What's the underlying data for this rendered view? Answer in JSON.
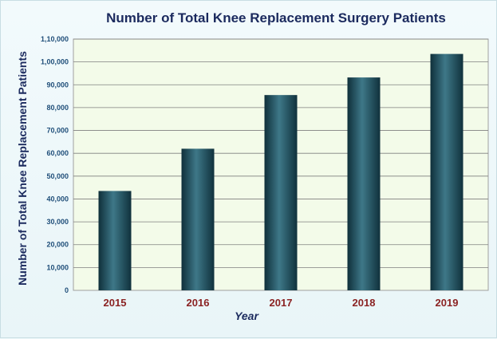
{
  "chart_data": {
    "type": "bar",
    "title": "Number of Total Knee Replacement Surgery Patients",
    "xlabel": "Year",
    "ylabel": "Number of Total Knee Replacement Patients",
    "categories": [
      "2015",
      "2016",
      "2017",
      "2018",
      "2019"
    ],
    "values": [
      43500,
      62000,
      85500,
      93200,
      103500
    ],
    "ylim": [
      0,
      110000
    ],
    "yticks": [
      0,
      10000,
      20000,
      30000,
      40000,
      50000,
      60000,
      70000,
      80000,
      90000,
      100000,
      110000
    ],
    "ytick_labels": [
      "0",
      "10,000",
      "20,000",
      "30,000",
      "40,000",
      "50,000",
      "60,000",
      "70,000",
      "80,000",
      "90,000",
      "1,00,000",
      "1,10,000"
    ],
    "grid": true,
    "legend": "none",
    "colors": {
      "title": "#1b2a5e",
      "bar_dark": "#0f2f3a",
      "bar_mid": "#3e7888",
      "plot_bg": "#f3fbe9",
      "grid": "#7f7f7f",
      "ytick": "#1f4e79",
      "xtick": "#8b2323",
      "axis_label": "#1b2a5e"
    }
  }
}
